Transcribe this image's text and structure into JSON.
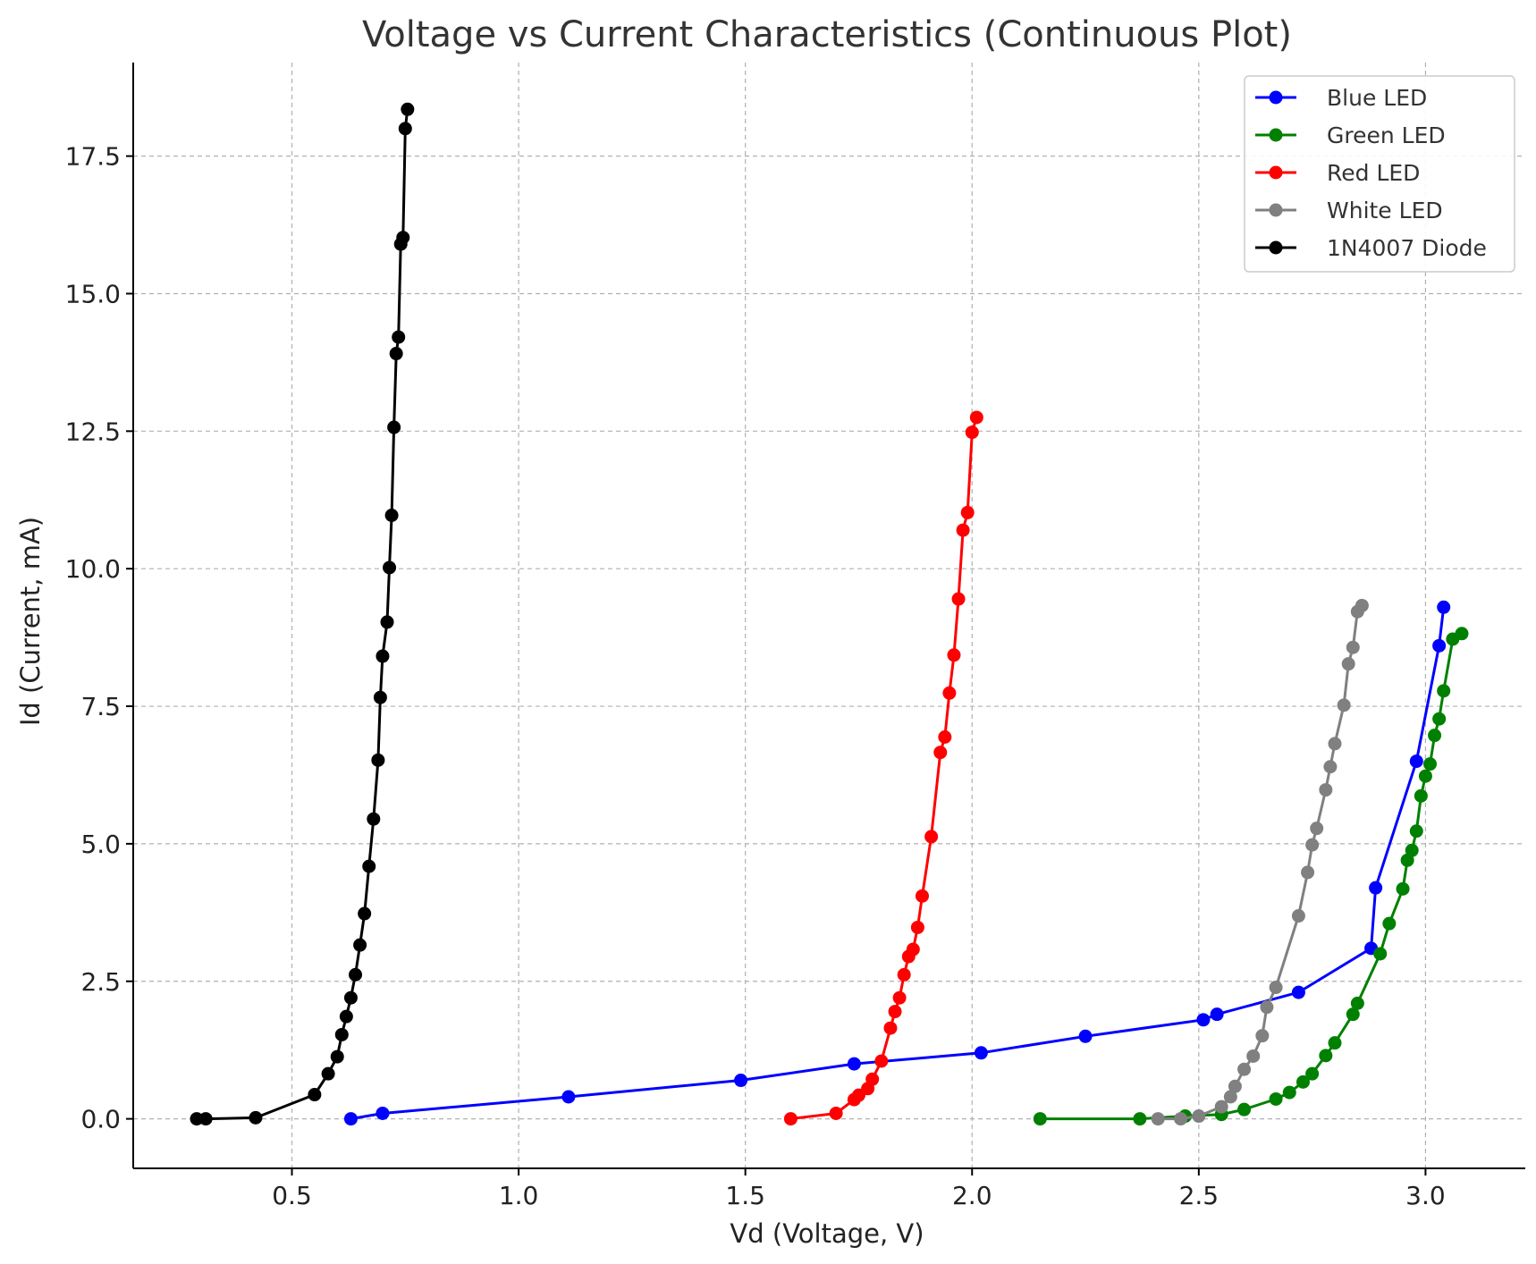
{
  "chart_data": {
    "type": "line",
    "title": "Voltage vs Current Characteristics (Continuous Plot)",
    "xlabel": "Vd (Voltage, V)",
    "ylabel": "Id (Current, mA)",
    "xlim": [
      0.15,
      3.22
    ],
    "ylim": [
      -0.9,
      19.2
    ],
    "xticks": [
      0.5,
      1.0,
      1.5,
      2.0,
      2.5,
      3.0
    ],
    "xtick_labels": [
      "0.5",
      "1.0",
      "1.5",
      "2.0",
      "2.5",
      "3.0"
    ],
    "yticks": [
      0.0,
      2.5,
      5.0,
      7.5,
      10.0,
      12.5,
      15.0,
      17.5
    ],
    "ytick_labels": [
      "0.0",
      "2.5",
      "5.0",
      "7.5",
      "10.0",
      "12.5",
      "15.0",
      "17.5"
    ],
    "grid": true,
    "legend_position": "top-right",
    "series": [
      {
        "name": "Blue LED",
        "color": "#0000ff",
        "x": [
          0.63,
          0.7,
          1.11,
          1.49,
          1.74,
          2.02,
          2.25,
          2.51,
          2.54,
          2.72,
          2.88,
          2.89,
          2.98,
          3.03,
          3.04
        ],
        "y": [
          0.0,
          0.1,
          0.4,
          0.7,
          1.0,
          1.2,
          1.5,
          1.8,
          1.9,
          2.3,
          3.1,
          4.2,
          6.5,
          8.6,
          9.3
        ]
      },
      {
        "name": "Green LED",
        "color": "#008000",
        "x": [
          2.15,
          2.37,
          2.47,
          2.55,
          2.6,
          2.67,
          2.7,
          2.73,
          2.75,
          2.78,
          2.8,
          2.84,
          2.85,
          2.9,
          2.92,
          2.95,
          2.96,
          2.97,
          2.98,
          2.99,
          3.0,
          3.01,
          3.02,
          3.03,
          3.04,
          3.06,
          3.08
        ],
        "y": [
          0.0,
          0.0,
          0.05,
          0.08,
          0.17,
          0.36,
          0.48,
          0.67,
          0.82,
          1.15,
          1.38,
          1.9,
          2.1,
          3.0,
          3.55,
          4.18,
          4.7,
          4.88,
          5.23,
          5.87,
          6.23,
          6.45,
          6.97,
          7.27,
          7.78,
          8.72,
          8.82
        ]
      },
      {
        "name": "Red LED",
        "color": "#ff0000",
        "x": [
          1.6,
          1.7,
          1.74,
          1.75,
          1.77,
          1.78,
          1.8,
          1.82,
          1.83,
          1.84,
          1.85,
          1.86,
          1.87,
          1.88,
          1.89,
          1.91,
          1.93,
          1.94,
          1.95,
          1.96,
          1.97,
          1.98,
          1.99,
          2.0,
          2.01
        ],
        "y": [
          0.0,
          0.1,
          0.35,
          0.43,
          0.55,
          0.72,
          1.05,
          1.65,
          1.95,
          2.2,
          2.62,
          2.95,
          3.08,
          3.48,
          4.05,
          5.13,
          6.66,
          6.94,
          7.74,
          8.43,
          9.45,
          10.7,
          11.02,
          12.48,
          12.75
        ]
      },
      {
        "name": "White LED",
        "color": "#808080",
        "x": [
          2.41,
          2.46,
          2.5,
          2.55,
          2.57,
          2.58,
          2.6,
          2.62,
          2.64,
          2.65,
          2.67,
          2.72,
          2.74,
          2.75,
          2.76,
          2.78,
          2.79,
          2.8,
          2.82,
          2.83,
          2.84,
          2.85,
          2.86
        ],
        "y": [
          0.0,
          0.0,
          0.05,
          0.22,
          0.4,
          0.59,
          0.9,
          1.14,
          1.51,
          2.03,
          2.39,
          3.69,
          4.48,
          4.98,
          5.28,
          5.98,
          6.4,
          6.82,
          7.52,
          8.27,
          8.57,
          9.22,
          9.33
        ]
      },
      {
        "name": "1N4007 Diode",
        "color": "#000000",
        "x": [
          0.29,
          0.31,
          0.42,
          0.55,
          0.58,
          0.6,
          0.61,
          0.62,
          0.63,
          0.64,
          0.65,
          0.66,
          0.67,
          0.68,
          0.69,
          0.695,
          0.7,
          0.71,
          0.715,
          0.72,
          0.725,
          0.73,
          0.735,
          0.74,
          0.745,
          0.75,
          0.755
        ],
        "y": [
          0.0,
          0.0,
          0.02,
          0.44,
          0.82,
          1.13,
          1.53,
          1.86,
          2.2,
          2.62,
          3.16,
          3.73,
          4.59,
          5.45,
          6.52,
          7.66,
          8.41,
          9.03,
          10.02,
          10.97,
          12.57,
          13.91,
          14.21,
          15.9,
          16.02,
          18.0,
          18.35
        ]
      }
    ]
  }
}
